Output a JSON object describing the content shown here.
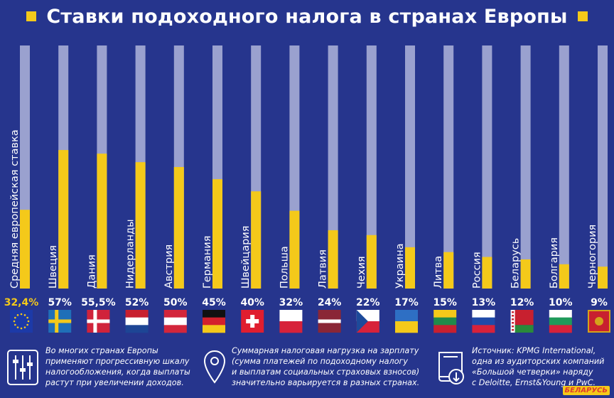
{
  "title": "Ставки подоходного налога в странах Европы",
  "colors": {
    "background": "#26358d",
    "track": "#9aa1cf",
    "bar": "#f4c91a",
    "text": "#ffffff",
    "highlight": "#f4c91a"
  },
  "chart_data": {
    "type": "bar",
    "orientation": "vertical",
    "ylim": [
      0,
      100
    ],
    "categories": [
      "Средняя европейская ставка",
      "Швеция",
      "Дания",
      "Нидерланды",
      "Австрия",
      "Германия",
      "Швейцария",
      "Польша",
      "Латвия",
      "Чехия",
      "Украина",
      "Литва",
      "Россия",
      "Беларусь",
      "Болгария",
      "Черногория"
    ],
    "values": [
      32.4,
      57,
      55.5,
      52,
      50,
      45,
      40,
      32,
      24,
      22,
      17,
      15,
      13,
      12,
      10,
      9
    ],
    "value_labels": [
      "32,4%",
      "57%",
      "55,5%",
      "52%",
      "50%",
      "45%",
      "40%",
      "32%",
      "24%",
      "22%",
      "17%",
      "15%",
      "13%",
      "12%",
      "10%",
      "9%"
    ],
    "flags": [
      "eu-flag-icon",
      "sweden-flag-icon",
      "denmark-flag-icon",
      "netherlands-flag-icon",
      "austria-flag-icon",
      "germany-flag-icon",
      "switzerland-flag-icon",
      "poland-flag-icon",
      "latvia-flag-icon",
      "czech-flag-icon",
      "ukraine-flag-icon",
      "lithuania-flag-icon",
      "russia-flag-icon",
      "belarus-flag-icon",
      "bulgaria-flag-icon",
      "montenegro-flag-icon"
    ]
  },
  "notes": [
    {
      "icon": "sliders-icon",
      "lines": [
        "Во многих странах Европы",
        "применяют прогрессивную шкалу",
        "налогообложения, когда выплаты",
        "растут при увеличении доходов."
      ]
    },
    {
      "icon": "location-pin-icon",
      "lines": [
        "Суммарная налоговая нагрузка на зарплату",
        "(сумма платежей по подоходному налогу",
        "и выплатам социальных страховых взносов)",
        "значительно варьируется в разных странах."
      ]
    },
    {
      "icon": "book-download-icon",
      "lines": [
        "Источник: KPMG International,",
        "одна из аудиторских компаний",
        "«Большой четверки» наряду",
        "с Deloitte, Ernst&Young и PwC."
      ]
    }
  ],
  "logo": "БЕЛАРУСЬ"
}
